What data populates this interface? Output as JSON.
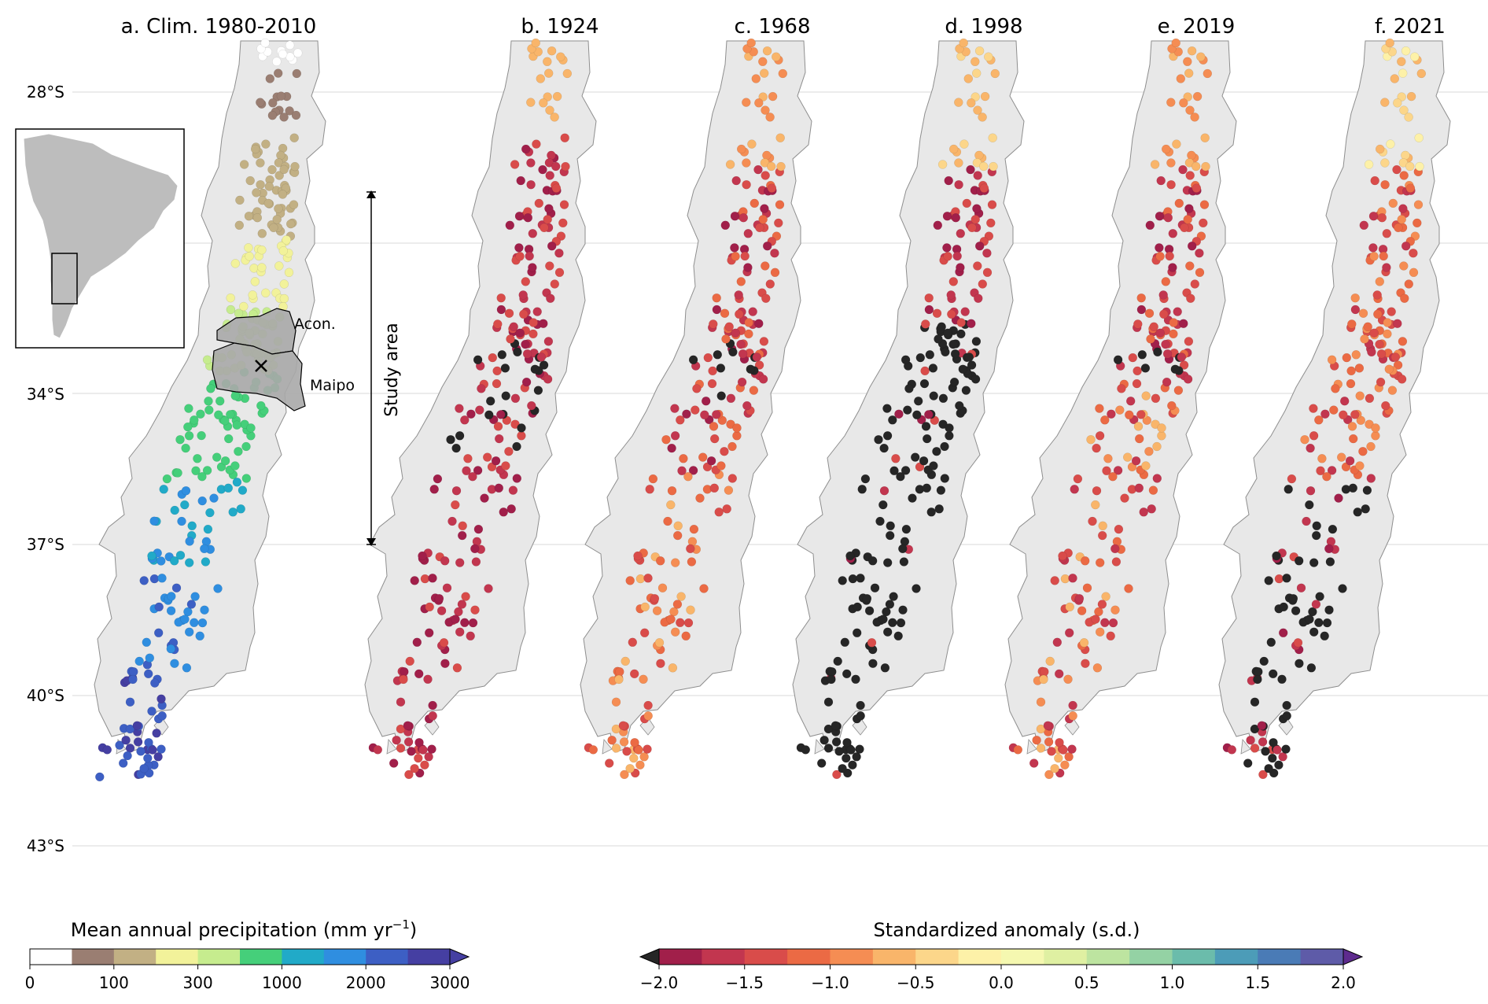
{
  "panels": [
    {
      "id": "a",
      "title": "a. Clim. 1980-2010"
    },
    {
      "id": "b",
      "title": "b. 1924"
    },
    {
      "id": "c",
      "title": "c. 1968"
    },
    {
      "id": "d",
      "title": "d. 1998"
    },
    {
      "id": "e",
      "title": "e. 2019"
    },
    {
      "id": "f",
      "title": "f. 2021"
    }
  ],
  "latitude_labels": [
    "28°S",
    "34°S",
    "37°S",
    "40°S",
    "43°S"
  ],
  "basins": {
    "north": "Acon.",
    "south": "Maipo"
  },
  "study_area_label": "Study area",
  "colorbars": {
    "precipitation": {
      "title": "Mean annual precipitation (mm yr",
      "title_sup": "−1",
      "title_end": ")",
      "ticks": [
        "0",
        "100",
        "300",
        "1000",
        "2000",
        "3000"
      ],
      "colors": [
        "#ffffff",
        "#9a7e72",
        "#c2b084",
        "#f2f29a",
        "#c6ec8e",
        "#45cf7a",
        "#21aac8",
        "#2f8ee0",
        "#3d5fc4",
        "#453fa2"
      ]
    },
    "anomaly": {
      "title": "Standardized anomaly (s.d.)",
      "ticks": [
        "−2.0",
        "−1.5",
        "−1.0",
        "−0.5",
        "0.0",
        "0.5",
        "1.0",
        "1.5",
        "2.0"
      ],
      "colors": [
        "#a11f4a",
        "#c2364f",
        "#d94c4a",
        "#eb6a44",
        "#f58d53",
        "#f9b56a",
        "#fcd68a",
        "#fdf1a8",
        "#f5f8b0",
        "#dff0a2",
        "#bde4a0",
        "#94d2a4",
        "#6bbcab",
        "#4c9cb8",
        "#4a7bb6",
        "#5e5ba8"
      ],
      "under_color": "#262626",
      "over_color": "#5e2b8e"
    }
  },
  "colors": {
    "land": "#e8e8e8",
    "basin": "#a9a9a9",
    "inset_land": "#bdbdbd",
    "gridline": "#d9d9d9",
    "no_data_dot": "#000000"
  }
}
